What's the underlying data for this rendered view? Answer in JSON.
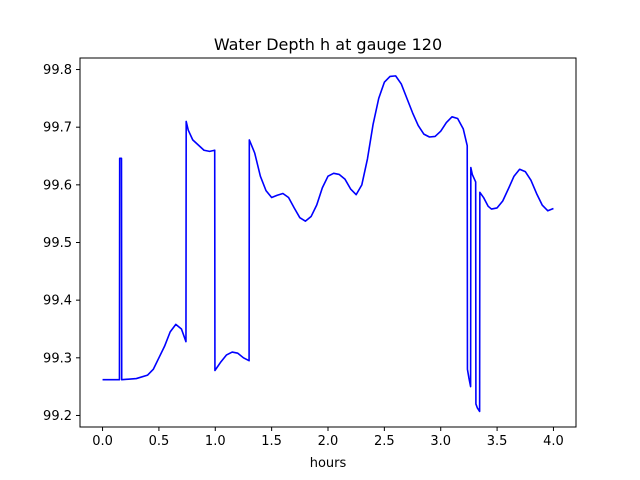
{
  "chart_data": {
    "type": "line",
    "title": "Water Depth h at gauge 120",
    "xlabel": "hours",
    "ylabel": "",
    "xlim": [
      -0.2,
      4.2
    ],
    "ylim": [
      99.18,
      99.82
    ],
    "xticks": [
      0.0,
      0.5,
      1.0,
      1.5,
      2.0,
      2.5,
      3.0,
      3.5,
      4.0
    ],
    "xtick_labels": [
      "0.0",
      "0.5",
      "1.0",
      "1.5",
      "2.0",
      "2.5",
      "3.0",
      "3.5",
      "4.0"
    ],
    "yticks": [
      99.2,
      99.3,
      99.4,
      99.5,
      99.6,
      99.7,
      99.8
    ],
    "ytick_labels": [
      "99.2",
      "99.3",
      "99.4",
      "99.5",
      "99.6",
      "99.7",
      "99.8"
    ],
    "grid": false,
    "legend": false,
    "series": [
      {
        "color": "#0000ff",
        "points": [
          [
            0.0,
            99.262
          ],
          [
            0.15,
            99.262
          ],
          [
            0.152,
            99.646
          ],
          [
            0.168,
            99.646
          ],
          [
            0.17,
            99.262
          ],
          [
            0.3,
            99.264
          ],
          [
            0.4,
            99.27
          ],
          [
            0.45,
            99.28
          ],
          [
            0.5,
            99.3
          ],
          [
            0.55,
            99.32
          ],
          [
            0.6,
            99.345
          ],
          [
            0.65,
            99.358
          ],
          [
            0.7,
            99.35
          ],
          [
            0.74,
            99.328
          ],
          [
            0.742,
            99.71
          ],
          [
            0.76,
            99.695
          ],
          [
            0.8,
            99.678
          ],
          [
            0.9,
            99.66
          ],
          [
            0.95,
            99.658
          ],
          [
            0.995,
            99.66
          ],
          [
            0.997,
            99.278
          ],
          [
            1.05,
            99.293
          ],
          [
            1.1,
            99.305
          ],
          [
            1.15,
            99.31
          ],
          [
            1.2,
            99.308
          ],
          [
            1.25,
            99.3
          ],
          [
            1.3,
            99.295
          ],
          [
            1.302,
            99.678
          ],
          [
            1.35,
            99.655
          ],
          [
            1.4,
            99.615
          ],
          [
            1.45,
            99.59
          ],
          [
            1.5,
            99.578
          ],
          [
            1.55,
            99.582
          ],
          [
            1.6,
            99.585
          ],
          [
            1.65,
            99.578
          ],
          [
            1.7,
            99.56
          ],
          [
            1.75,
            99.543
          ],
          [
            1.8,
            99.537
          ],
          [
            1.85,
            99.545
          ],
          [
            1.9,
            99.565
          ],
          [
            1.95,
            99.595
          ],
          [
            2.0,
            99.615
          ],
          [
            2.05,
            99.62
          ],
          [
            2.1,
            99.618
          ],
          [
            2.15,
            99.61
          ],
          [
            2.2,
            99.593
          ],
          [
            2.25,
            99.583
          ],
          [
            2.3,
            99.6
          ],
          [
            2.35,
            99.645
          ],
          [
            2.4,
            99.705
          ],
          [
            2.45,
            99.75
          ],
          [
            2.5,
            99.778
          ],
          [
            2.55,
            99.788
          ],
          [
            2.6,
            99.789
          ],
          [
            2.65,
            99.775
          ],
          [
            2.7,
            99.75
          ],
          [
            2.75,
            99.725
          ],
          [
            2.8,
            99.703
          ],
          [
            2.85,
            99.688
          ],
          [
            2.9,
            99.683
          ],
          [
            2.95,
            99.684
          ],
          [
            3.0,
            99.693
          ],
          [
            3.05,
            99.708
          ],
          [
            3.1,
            99.718
          ],
          [
            3.15,
            99.715
          ],
          [
            3.2,
            99.697
          ],
          [
            3.235,
            99.668
          ],
          [
            3.237,
            99.28
          ],
          [
            3.25,
            99.265
          ],
          [
            3.265,
            99.25
          ],
          [
            3.267,
            99.63
          ],
          [
            3.28,
            99.618
          ],
          [
            3.31,
            99.605
          ],
          [
            3.312,
            99.22
          ],
          [
            3.325,
            99.213
          ],
          [
            3.345,
            99.207
          ],
          [
            3.347,
            99.587
          ],
          [
            3.38,
            99.578
          ],
          [
            3.42,
            99.563
          ],
          [
            3.45,
            99.558
          ],
          [
            3.5,
            99.56
          ],
          [
            3.55,
            99.572
          ],
          [
            3.6,
            99.593
          ],
          [
            3.65,
            99.615
          ],
          [
            3.7,
            99.627
          ],
          [
            3.75,
            99.623
          ],
          [
            3.8,
            99.608
          ],
          [
            3.85,
            99.585
          ],
          [
            3.9,
            99.565
          ],
          [
            3.95,
            99.555
          ],
          [
            4.0,
            99.559
          ]
        ]
      }
    ]
  }
}
